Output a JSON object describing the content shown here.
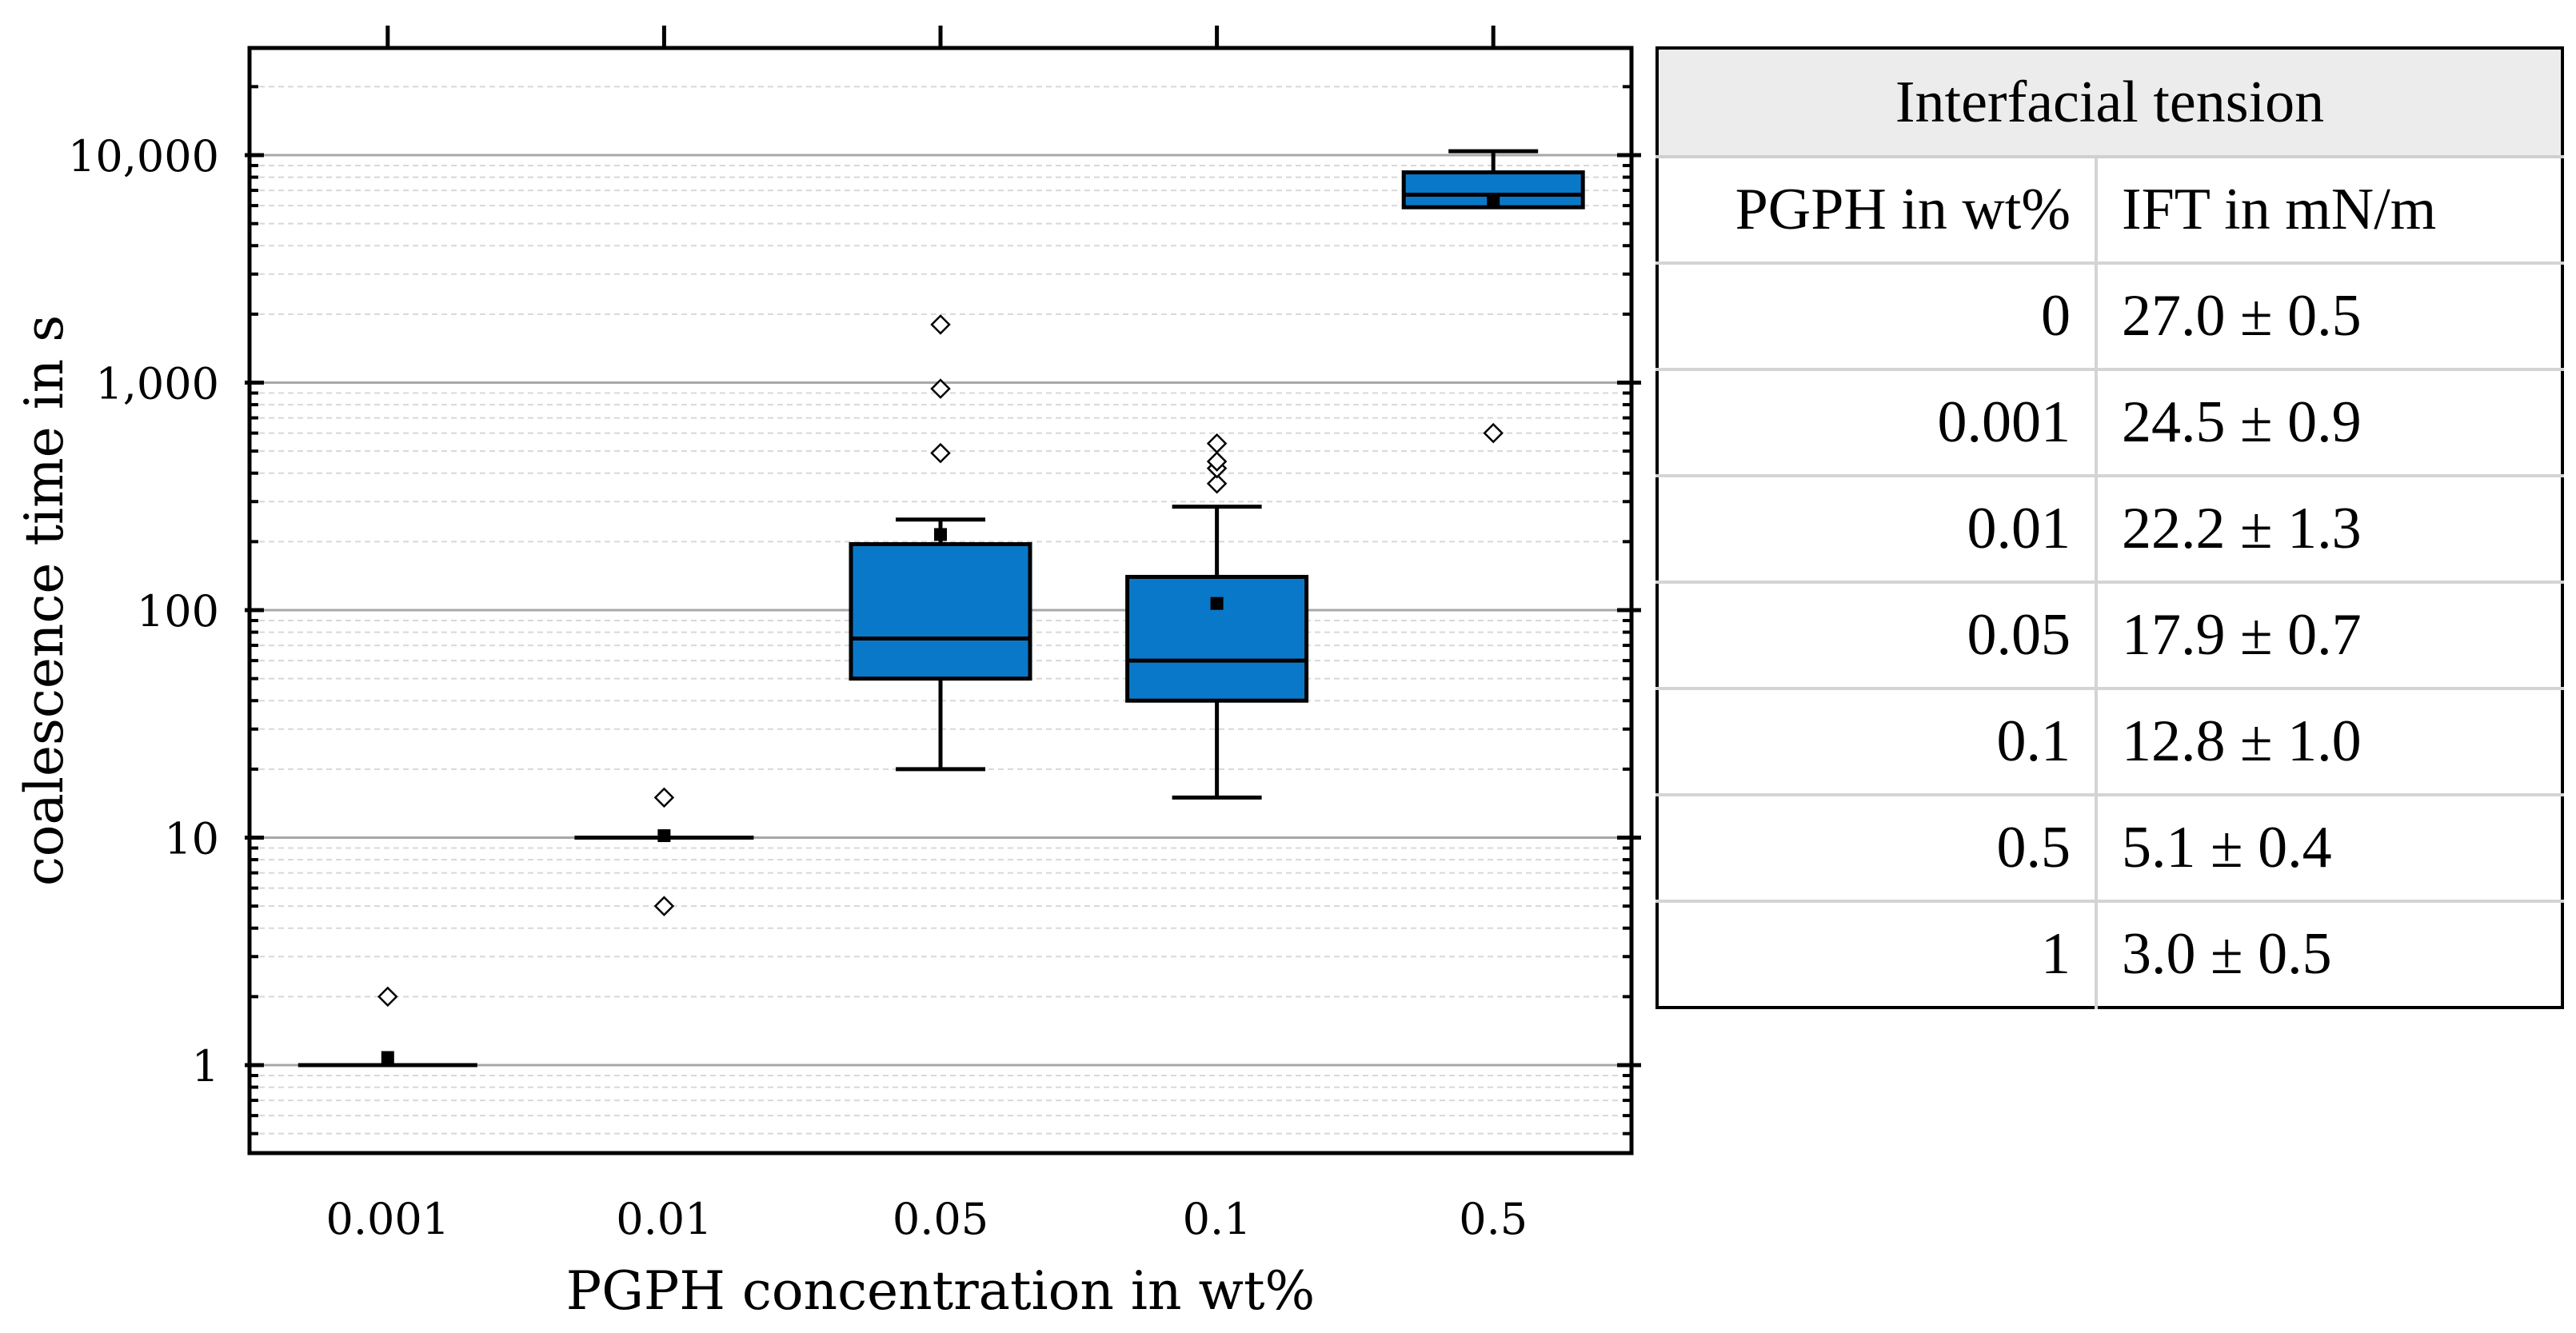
{
  "chart_data": {
    "type": "box",
    "xlabel": "PGPH concentration in wt%",
    "ylabel": "coalescence time in s",
    "yscale": "log",
    "ylim": [
      0.4,
      30000
    ],
    "y_ticks": [
      1,
      10,
      100,
      1000,
      10000
    ],
    "y_tick_labels": [
      "1",
      "10",
      "100",
      "1,000",
      "10,000"
    ],
    "categories": [
      "0.001",
      "0.01",
      "0.05",
      "0.1",
      "0.5"
    ],
    "boxes": [
      {
        "category": "0.001",
        "whisker_low": 1,
        "q1": 1,
        "median": 1,
        "q3": 1,
        "whisker_high": 1,
        "mean": 1.08,
        "outliers": [
          2
        ]
      },
      {
        "category": "0.01",
        "whisker_low": 10,
        "q1": 10,
        "median": 10,
        "q3": 10,
        "whisker_high": 10,
        "mean": 10.2,
        "outliers": [
          15,
          5
        ]
      },
      {
        "category": "0.05",
        "whisker_low": 20,
        "q1": 50,
        "median": 75,
        "q3": 195,
        "whisker_high": 250,
        "mean": 215,
        "outliers": [
          490,
          940,
          1800
        ]
      },
      {
        "category": "0.1",
        "whisker_low": 15,
        "q1": 40,
        "median": 60,
        "q3": 140,
        "whisker_high": 285,
        "mean": 107,
        "outliers": [
          360,
          420,
          450,
          540
        ]
      },
      {
        "category": "0.5",
        "whisker_low": 5900,
        "q1": 5900,
        "median": 6700,
        "q3": 8400,
        "whisker_high": 10400,
        "mean": 6400,
        "outliers": [
          600
        ]
      }
    ],
    "box_color": "#0a78c8"
  },
  "table": {
    "title": "Interfacial tension",
    "headers": [
      "PGPH in wt%",
      "IFT in mN/m"
    ],
    "rows": [
      {
        "pgph": "0",
        "ift": "27.0 ± 0.5"
      },
      {
        "pgph": "0.001",
        "ift": "24.5 ± 0.9"
      },
      {
        "pgph": "0.01",
        "ift": "22.2 ± 1.3"
      },
      {
        "pgph": "0.05",
        "ift": "17.9 ± 0.7"
      },
      {
        "pgph": "0.1",
        "ift": "12.8 ± 1.0"
      },
      {
        "pgph": "0.5",
        "ift": "5.1 ± 0.4"
      },
      {
        "pgph": "1",
        "ift": "3.0 ± 0.5"
      }
    ]
  }
}
